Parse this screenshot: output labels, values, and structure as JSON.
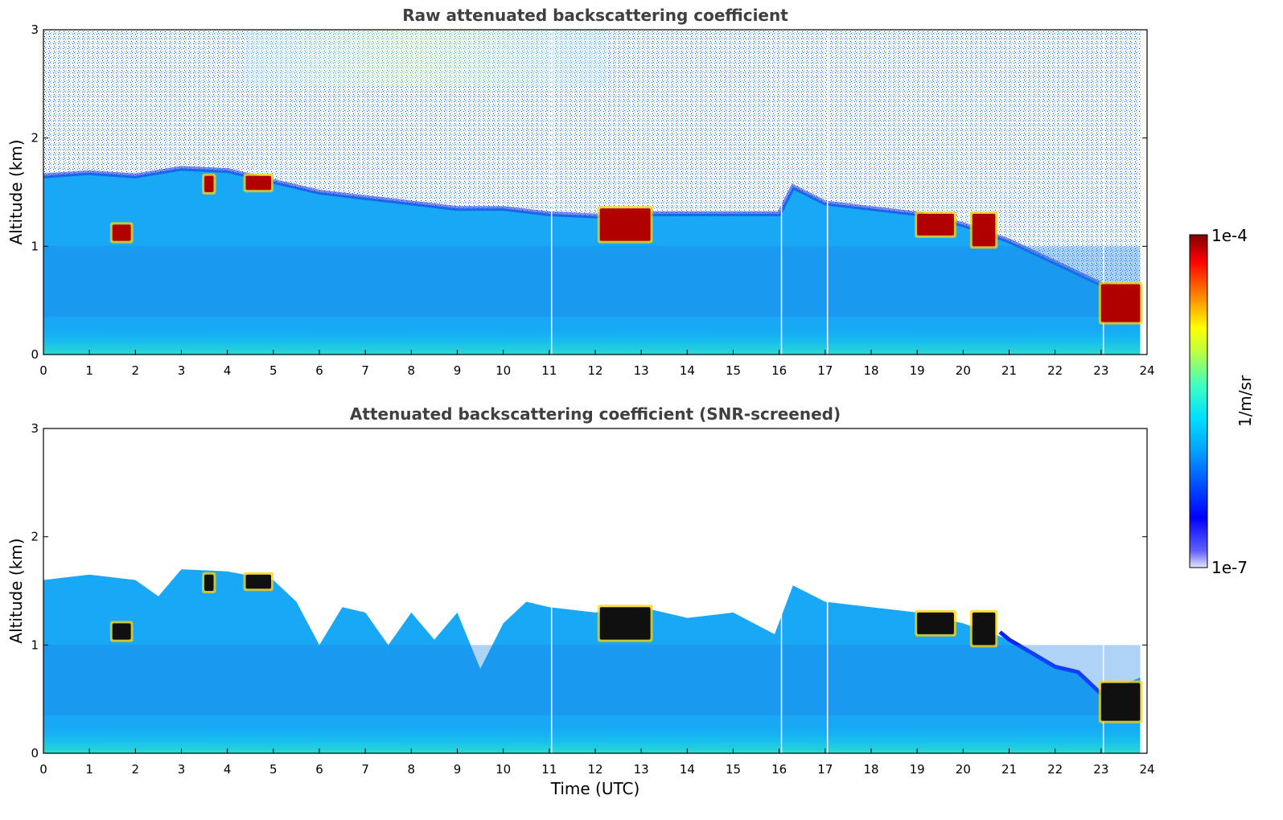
{
  "chart_data": [
    {
      "type": "heatmap",
      "title": "Raw attenuated backscattering coefficient",
      "xlabel": "",
      "ylabel": "Altitude (km)",
      "xlim": [
        0,
        24
      ],
      "ylim": [
        0,
        3
      ],
      "xticks": [
        0,
        1,
        2,
        3,
        4,
        5,
        6,
        7,
        8,
        9,
        10,
        11,
        12,
        13,
        14,
        15,
        16,
        17,
        18,
        19,
        20,
        21,
        22,
        23,
        24
      ],
      "yticks": [
        0,
        1,
        2,
        3
      ],
      "data_end_hour": 23.85,
      "data_gaps_hour": [
        11.05,
        16.05,
        17.05,
        23.05
      ],
      "boundary_layer_top_km": {
        "x": [
          0,
          1,
          2,
          3,
          4,
          5,
          6,
          7,
          8,
          9,
          10,
          11,
          12,
          13,
          14,
          15,
          16,
          16.3,
          17,
          18,
          19,
          20,
          21,
          22,
          23,
          23.85
        ],
        "y": [
          1.65,
          1.68,
          1.65,
          1.72,
          1.7,
          1.6,
          1.5,
          1.45,
          1.4,
          1.35,
          1.35,
          1.3,
          1.28,
          1.3,
          1.3,
          1.3,
          1.3,
          1.55,
          1.4,
          1.35,
          1.3,
          1.2,
          1.05,
          0.85,
          0.65,
          0.6
        ]
      },
      "high_backscatter_features": [
        {
          "x": [
            3.5,
            3.7
          ],
          "y": [
            1.5,
            1.65
          ]
        },
        {
          "x": [
            4.4,
            4.95
          ],
          "y": [
            1.52,
            1.65
          ]
        },
        {
          "x": [
            1.5,
            1.9
          ],
          "y": [
            1.05,
            1.2
          ]
        },
        {
          "x": [
            12.1,
            13.2
          ],
          "y": [
            1.05,
            1.35
          ]
        },
        {
          "x": [
            19.0,
            19.8
          ],
          "y": [
            1.1,
            1.3
          ]
        },
        {
          "x": [
            20.2,
            20.7
          ],
          "y": [
            1.0,
            1.3
          ]
        },
        {
          "x": [
            23.0,
            23.85
          ],
          "y": [
            0.3,
            0.65
          ]
        }
      ]
    },
    {
      "type": "heatmap",
      "title": "Attenuated backscattering coefficient (SNR-screened)",
      "xlabel": "Time (UTC)",
      "ylabel": "Altitude (km)",
      "xlim": [
        0,
        24
      ],
      "ylim": [
        0,
        3
      ],
      "xticks": [
        0,
        1,
        2,
        3,
        4,
        5,
        6,
        7,
        8,
        9,
        10,
        11,
        12,
        13,
        14,
        15,
        16,
        17,
        18,
        19,
        20,
        21,
        22,
        23,
        24
      ],
      "yticks": [
        0,
        1,
        2,
        3
      ],
      "data_end_hour": 23.85,
      "data_gaps_hour": [
        11.05,
        16.05,
        17.05,
        23.05
      ],
      "screened_top_km": {
        "x": [
          0,
          1,
          2,
          2.5,
          3,
          4,
          5,
          5.5,
          6,
          6.5,
          7,
          7.5,
          8,
          8.5,
          9,
          9.5,
          10,
          10.5,
          11,
          12,
          13,
          14,
          15,
          15.9,
          16.3,
          17,
          18,
          19,
          20,
          21,
          22,
          22.5,
          23,
          23.85
        ],
        "y": [
          1.6,
          1.65,
          1.6,
          1.45,
          1.7,
          1.68,
          1.6,
          1.4,
          1.0,
          1.35,
          1.3,
          1.0,
          1.3,
          1.05,
          1.3,
          0.78,
          1.2,
          1.4,
          1.35,
          1.3,
          1.35,
          1.25,
          1.3,
          1.1,
          1.55,
          1.4,
          1.35,
          1.3,
          1.2,
          1.05,
          0.8,
          0.75,
          0.55,
          0.7
        ]
      },
      "high_backscatter_features": [
        {
          "x": [
            3.5,
            3.7
          ],
          "y": [
            1.5,
            1.65
          ]
        },
        {
          "x": [
            4.4,
            4.95
          ],
          "y": [
            1.52,
            1.65
          ]
        },
        {
          "x": [
            1.5,
            1.9
          ],
          "y": [
            1.05,
            1.2
          ]
        },
        {
          "x": [
            12.1,
            13.2
          ],
          "y": [
            1.05,
            1.35
          ]
        },
        {
          "x": [
            19.0,
            19.8
          ],
          "y": [
            1.1,
            1.3
          ]
        },
        {
          "x": [
            20.2,
            20.7
          ],
          "y": [
            1.0,
            1.3
          ]
        },
        {
          "x": [
            23.0,
            23.85
          ],
          "y": [
            0.3,
            0.65
          ]
        }
      ]
    }
  ],
  "colorbar": {
    "label": "1/m/sr",
    "max_label": "1e-4",
    "min_label": "1e-7",
    "scale": "log",
    "colormap": "jet",
    "colors": [
      "#e6e6fa",
      "#0000ff",
      "#00a0ff",
      "#00ffff",
      "#7fff7f",
      "#ffff00",
      "#ff7f00",
      "#ff0000",
      "#7f0000"
    ]
  }
}
